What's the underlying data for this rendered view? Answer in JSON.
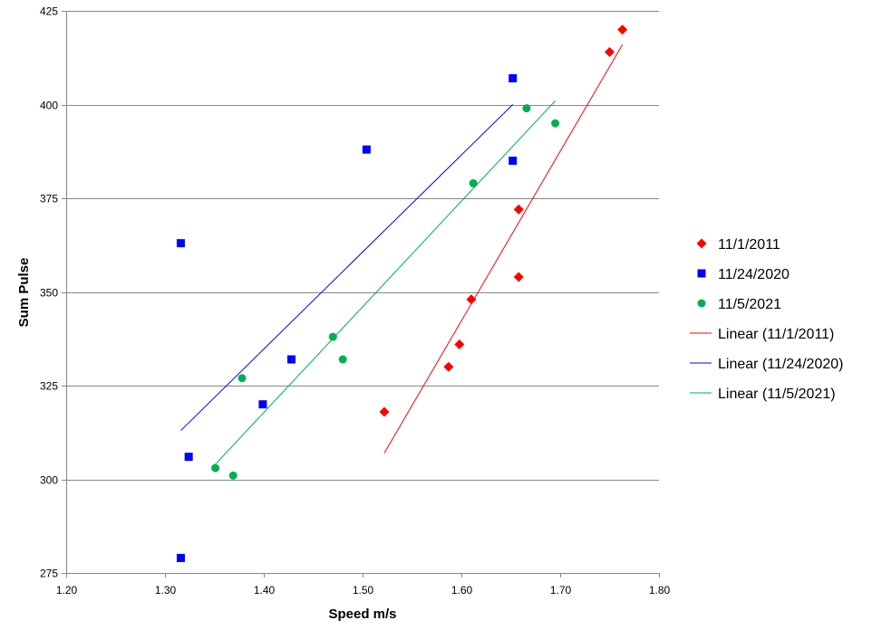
{
  "chart_data": {
    "type": "scatter",
    "title": "",
    "xlabel": "Speed m/s",
    "ylabel": "Sum Pulse",
    "xlim": [
      1.2,
      1.8
    ],
    "ylim": [
      275,
      425
    ],
    "x_ticks": [
      "1.20",
      "1.30",
      "1.40",
      "1.50",
      "1.60",
      "1.70",
      "1.80"
    ],
    "y_ticks": [
      "275",
      "300",
      "325",
      "350",
      "375",
      "400",
      "425"
    ],
    "grid": "horizontal",
    "legend_position": "right",
    "series": [
      {
        "name": "11/1/2011",
        "marker": "diamond",
        "color": "#ff0000",
        "points": [
          {
            "x": 1.522,
            "y": 318
          },
          {
            "x": 1.587,
            "y": 330
          },
          {
            "x": 1.598,
            "y": 336
          },
          {
            "x": 1.61,
            "y": 348
          },
          {
            "x": 1.658,
            "y": 372
          },
          {
            "x": 1.658,
            "y": 354
          },
          {
            "x": 1.75,
            "y": 414
          },
          {
            "x": 1.763,
            "y": 420
          }
        ]
      },
      {
        "name": "11/24/2020",
        "marker": "square",
        "color": "#0000ff",
        "points": [
          {
            "x": 1.316,
            "y": 363
          },
          {
            "x": 1.324,
            "y": 306
          },
          {
            "x": 1.316,
            "y": 279
          },
          {
            "x": 1.399,
            "y": 320
          },
          {
            "x": 1.428,
            "y": 332
          },
          {
            "x": 1.504,
            "y": 388
          },
          {
            "x": 1.652,
            "y": 407
          },
          {
            "x": 1.652,
            "y": 385
          }
        ]
      },
      {
        "name": "11/5/2021",
        "marker": "circle",
        "color": "#00b050",
        "points": [
          {
            "x": 1.351,
            "y": 303
          },
          {
            "x": 1.369,
            "y": 301
          },
          {
            "x": 1.378,
            "y": 327
          },
          {
            "x": 1.47,
            "y": 338
          },
          {
            "x": 1.48,
            "y": 332
          },
          {
            "x": 1.612,
            "y": 379
          },
          {
            "x": 1.666,
            "y": 399
          },
          {
            "x": 1.695,
            "y": 395
          }
        ]
      }
    ],
    "trendlines": [
      {
        "name": "Linear (11/1/2011)",
        "color": "#ff0000",
        "x": [
          1.522,
          1.763
        ],
        "y": [
          307,
          416
        ]
      },
      {
        "name": "Linear (11/24/2020)",
        "color": "#0000ff",
        "x": [
          1.316,
          1.652
        ],
        "y": [
          313,
          400
        ]
      },
      {
        "name": "Linear (11/5/2021)",
        "color": "#00b050",
        "x": [
          1.351,
          1.695
        ],
        "y": [
          304,
          401
        ]
      }
    ]
  }
}
